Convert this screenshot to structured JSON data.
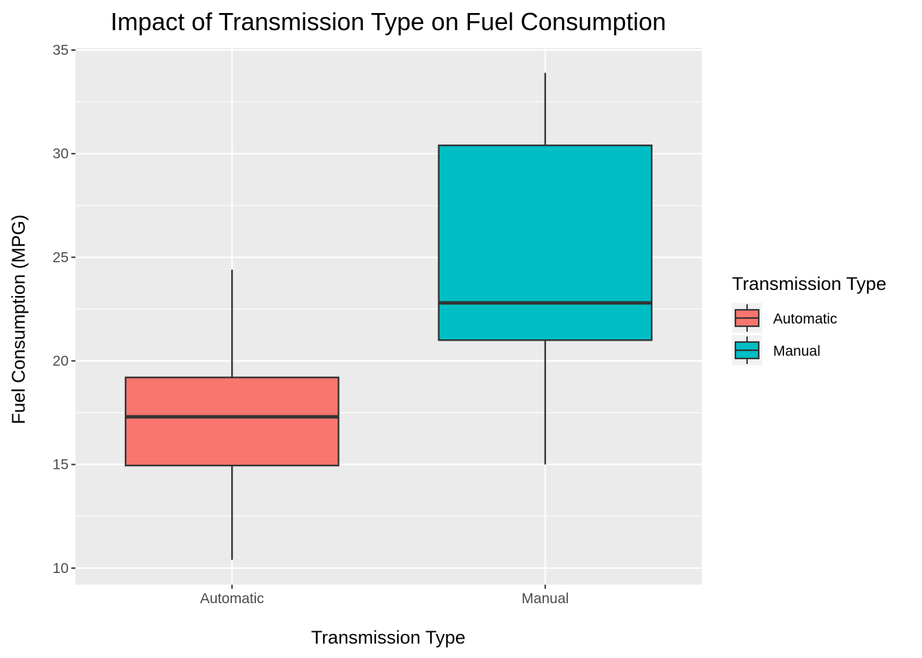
{
  "chart_data": {
    "type": "box",
    "title": "Impact of Transmission Type on Fuel Consumption",
    "xlabel": "Transmission Type",
    "ylabel": "Fuel Consumption (MPG)",
    "ylim": [
      9.2,
      35.1
    ],
    "y_ticks": [
      10,
      15,
      20,
      25,
      30,
      35
    ],
    "y_tick_labels": [
      "10",
      "15",
      "20",
      "25",
      "30",
      "35"
    ],
    "categories": [
      "Automatic",
      "Manual"
    ],
    "series": [
      {
        "name": "Automatic",
        "color": "#F8766D",
        "whisker_low": 10.4,
        "q1": 14.95,
        "median": 17.3,
        "q3": 19.2,
        "whisker_high": 24.4
      },
      {
        "name": "Manual",
        "color": "#00BFC4",
        "whisker_low": 15.0,
        "q1": 21.0,
        "median": 22.8,
        "q3": 30.4,
        "whisker_high": 33.9
      }
    ],
    "grid": true,
    "panel_background": "#EBEBEB",
    "legend": {
      "title": "Transmission Type",
      "position": "right",
      "items": [
        "Automatic",
        "Manual"
      ]
    }
  }
}
